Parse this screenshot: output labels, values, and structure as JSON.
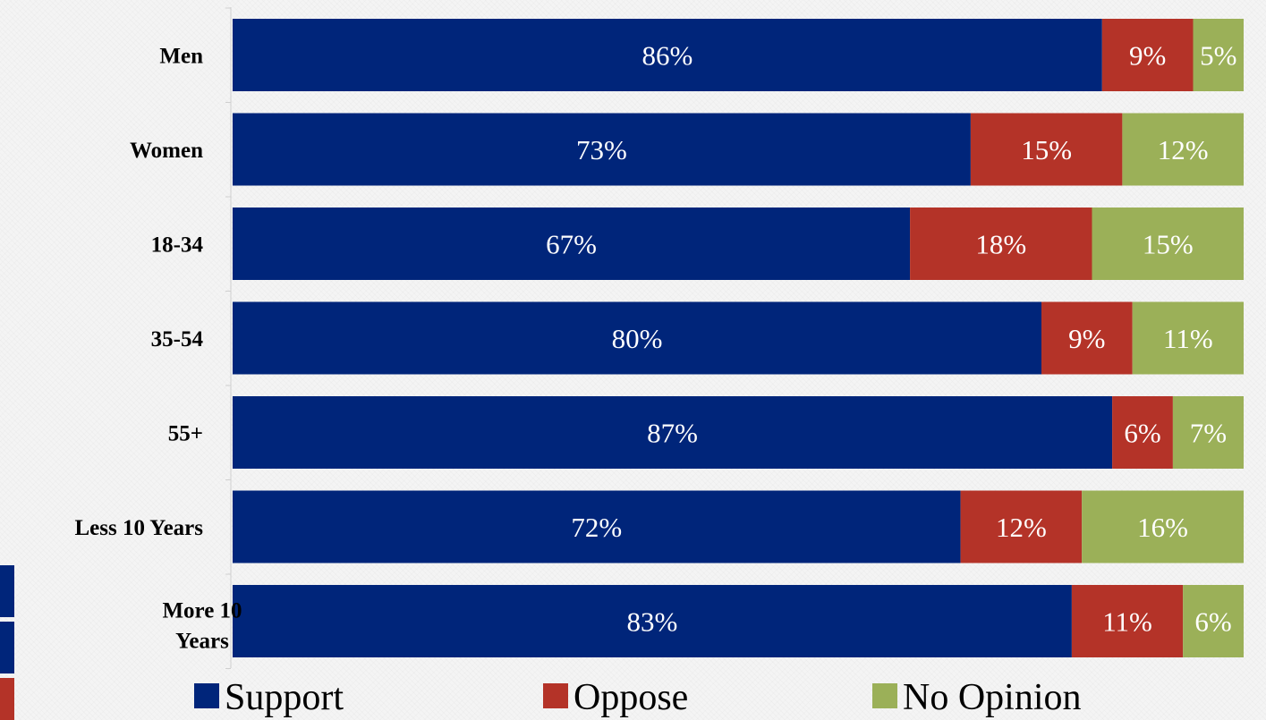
{
  "chart_data": {
    "type": "bar",
    "orientation": "horizontal",
    "stacked": true,
    "categories": [
      "Men",
      "Women",
      "18-34",
      "35-54",
      "55+",
      "Less 10 Years",
      "More 10 Years"
    ],
    "series": [
      {
        "name": "Support",
        "color": "#00257a",
        "values": [
          86,
          73,
          67,
          80,
          87,
          72,
          83
        ],
        "labels": [
          "86%",
          "73%",
          "67%",
          "80%",
          "87%",
          "72%",
          "83%"
        ]
      },
      {
        "name": "Oppose",
        "color": "#b43328",
        "values": [
          9,
          15,
          18,
          9,
          6,
          12,
          11
        ],
        "labels": [
          "9%",
          "15%",
          "18%",
          "9%",
          "6%",
          "12%",
          "11%"
        ]
      },
      {
        "name": "No Opinion",
        "color": "#9bb058",
        "values": [
          5,
          12,
          15,
          11,
          7,
          16,
          6
        ],
        "labels": [
          "5%",
          "12%",
          "15%",
          "11%",
          "7%",
          "16%",
          "6%"
        ]
      }
    ],
    "xlim": [
      0,
      100
    ],
    "grid": false,
    "legend_position": "bottom"
  }
}
